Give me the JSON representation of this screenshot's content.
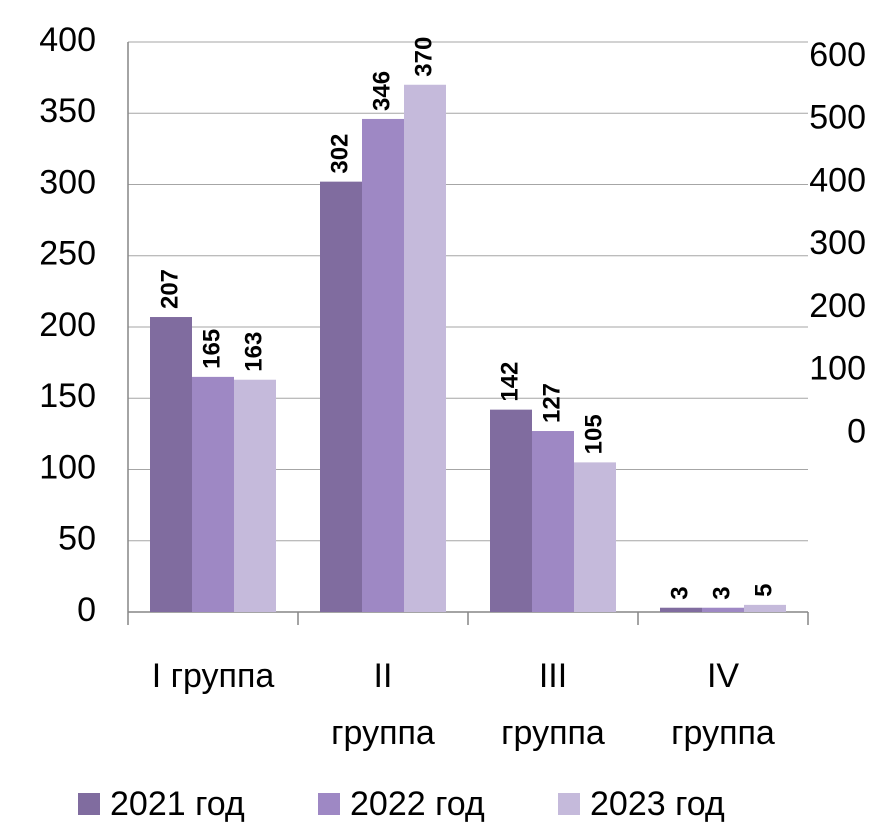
{
  "chart_data": {
    "type": "bar",
    "categories": [
      "I группа",
      "II\nгруппа",
      "III\nгруппа",
      "IV\nгруппа"
    ],
    "series": [
      {
        "name": "2021 год",
        "color": "#806c9f",
        "values": [
          207,
          302,
          142,
          3
        ]
      },
      {
        "name": "2022 год",
        "color": "#9e88c4",
        "values": [
          165,
          346,
          127,
          3
        ]
      },
      {
        "name": "2023 год",
        "color": "#c5badb",
        "values": [
          163,
          370,
          105,
          5
        ]
      }
    ],
    "ylim": [
      0,
      400
    ],
    "yticks": [
      0,
      50,
      100,
      150,
      200,
      250,
      300,
      350,
      400
    ],
    "y2lim": [
      -285,
      624
    ],
    "y2ticks": [
      0,
      100,
      200,
      300,
      400,
      500,
      600
    ],
    "grid": true,
    "legend": "bottom"
  }
}
